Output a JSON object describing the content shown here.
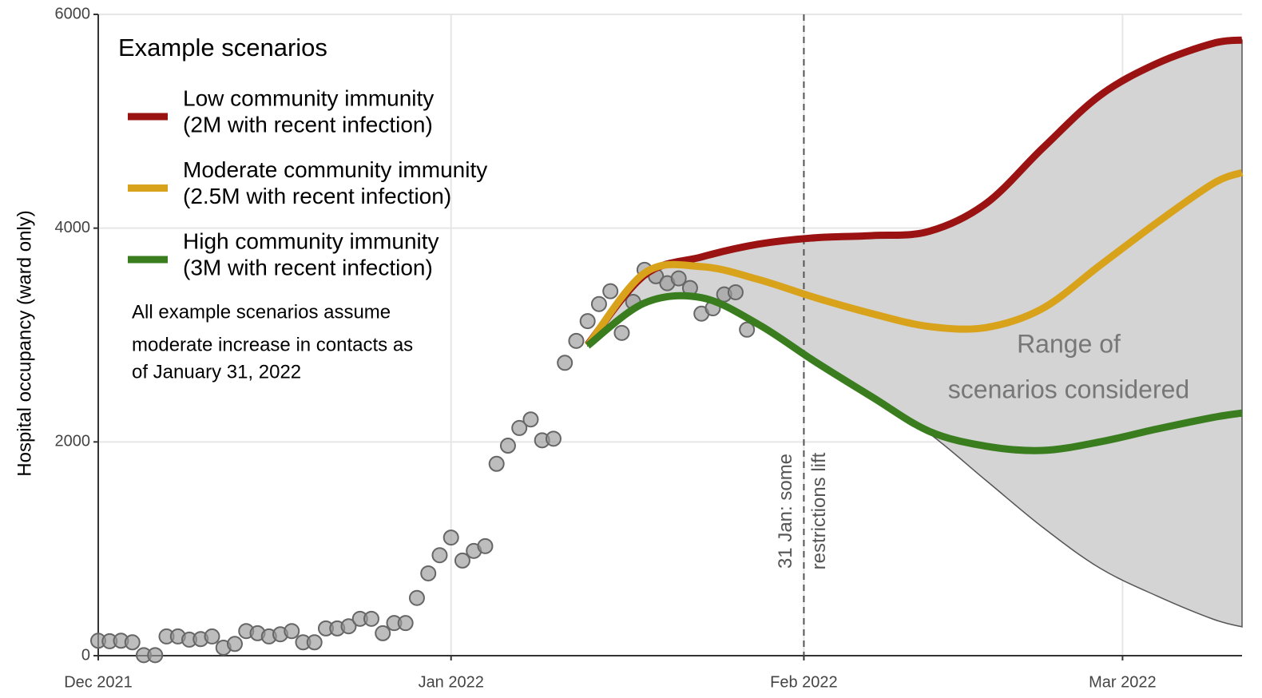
{
  "chart_data": {
    "type": "scenario",
    "y_label": "Hospital occupancy (ward only)",
    "ylim": [
      0,
      6000
    ],
    "yticks": [
      0,
      2000,
      4000,
      6000
    ],
    "xlim": [
      0,
      100.5
    ],
    "xticks": [
      {
        "value": 0,
        "label": "Dec 2021"
      },
      {
        "value": 31,
        "label": "Jan 2022"
      },
      {
        "value": 62,
        "label": "Feb 2022"
      },
      {
        "value": 90,
        "label": "Mar 2022"
      }
    ],
    "grid": true,
    "observed": {
      "color": "#999999",
      "x": [
        0,
        1,
        2,
        3,
        4,
        5,
        6,
        7,
        8,
        9,
        10,
        11,
        12,
        13,
        14,
        15,
        16,
        17,
        18,
        19,
        20,
        21,
        22,
        23,
        24,
        25,
        26,
        27,
        28,
        29,
        30,
        31,
        32,
        33,
        34,
        35,
        36,
        37,
        38,
        39,
        40,
        41,
        42,
        43,
        44,
        45,
        46,
        47,
        48,
        49,
        50,
        51,
        52,
        53,
        54,
        55,
        56,
        57
      ],
      "values": [
        140,
        135,
        140,
        125,
        5,
        5,
        180,
        180,
        150,
        155,
        180,
        75,
        110,
        230,
        210,
        180,
        200,
        230,
        125,
        125,
        255,
        255,
        275,
        345,
        345,
        210,
        305,
        305,
        540,
        770,
        940,
        1105,
        890,
        980,
        1025,
        1795,
        1965,
        2130,
        2210,
        2015,
        2030,
        2740,
        2945,
        3130,
        3290,
        3410,
        3020,
        3310,
        3610,
        3550,
        3485,
        3530,
        3440,
        3200,
        3250,
        3380,
        3400,
        3050
      ]
    },
    "scenario_x": [
      43,
      48,
      53,
      58,
      63,
      68,
      73,
      78,
      83,
      88,
      93,
      98,
      100.5
    ],
    "series": [
      {
        "name": [
          "Low community immunity",
          "(2M with recent infection)"
        ],
        "color": "#9b1212",
        "values": [
          2910,
          3560,
          3730,
          3850,
          3910,
          3930,
          3970,
          4230,
          4750,
          5240,
          5540,
          5730,
          5760
        ]
      },
      {
        "name": [
          "Moderate community immunity",
          "(2.5M with recent infection)"
        ],
        "color": "#d9a21b",
        "values": [
          2900,
          3580,
          3640,
          3520,
          3350,
          3200,
          3080,
          3070,
          3250,
          3650,
          4050,
          4420,
          4520
        ]
      },
      {
        "name": [
          "High community immunity",
          "(3M with recent infection)"
        ],
        "color": "#3a7d1f",
        "values": [
          2900,
          3300,
          3350,
          3100,
          2750,
          2420,
          2100,
          1960,
          1920,
          2000,
          2120,
          2230,
          2270
        ]
      }
    ],
    "band": {
      "color": "#d4d4d4",
      "lower": [
        2900,
        3300,
        3350,
        3100,
        2750,
        2420,
        2080,
        1640,
        1200,
        820,
        560,
        340,
        270
      ]
    },
    "band_label": [
      "Range of",
      "scenarios considered"
    ],
    "legend_title": "Example scenarios",
    "note": [
      "All example scenarios assume",
      "moderate increase in contacts as",
      "of January 31, 2022"
    ],
    "vline": {
      "x": 62,
      "label": [
        "31 Jan: some",
        "restrictions lift"
      ]
    }
  }
}
